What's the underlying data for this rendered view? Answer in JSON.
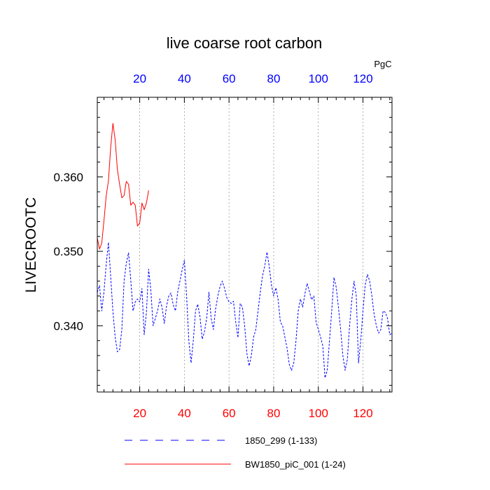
{
  "chart_data": {
    "type": "line",
    "title": "live coarse root carbon",
    "units": "PgC",
    "ylabel": "LIVECROOTC",
    "xlabel": "",
    "xlim": [
      1,
      133
    ],
    "ylim": [
      0.3311,
      0.3707
    ],
    "yticks_major": [
      0.34,
      0.35,
      0.36
    ],
    "ytick_labels": [
      "0.340",
      "0.350",
      "0.360"
    ],
    "yticks_minor_step": 0.002,
    "xticks": [
      20,
      40,
      60,
      80,
      100,
      120
    ],
    "xtick_labels": [
      "20",
      "40",
      "60",
      "80",
      "100",
      "120"
    ],
    "xtick_color_top": "#0000ff",
    "xtick_color_bottom": "#ff0000",
    "xgrid": true,
    "ygrid": false,
    "legend_placement": "bottom",
    "series": [
      {
        "name": "1850_299 (1-133)",
        "color": "#0000ff",
        "style": "dashed",
        "x": [
          1,
          2,
          3,
          4,
          5,
          6,
          7,
          8,
          9,
          10,
          11,
          12,
          13,
          14,
          15,
          16,
          17,
          18,
          19,
          20,
          21,
          22,
          23,
          24,
          25,
          26,
          27,
          28,
          29,
          30,
          31,
          32,
          33,
          34,
          35,
          36,
          37,
          38,
          39,
          40,
          41,
          42,
          43,
          44,
          45,
          46,
          47,
          48,
          49,
          50,
          51,
          52,
          53,
          54,
          55,
          56,
          57,
          58,
          59,
          60,
          61,
          62,
          63,
          64,
          65,
          66,
          67,
          68,
          69,
          70,
          71,
          72,
          73,
          74,
          75,
          76,
          77,
          78,
          79,
          80,
          81,
          82,
          83,
          84,
          85,
          86,
          87,
          88,
          89,
          90,
          91,
          92,
          93,
          94,
          95,
          96,
          97,
          98,
          99,
          100,
          101,
          102,
          103,
          104,
          105,
          106,
          107,
          108,
          109,
          110,
          111,
          112,
          113,
          114,
          115,
          116,
          117,
          118,
          119,
          120,
          121,
          122,
          123,
          124,
          125,
          126,
          127,
          128,
          129,
          130,
          131,
          132,
          133
        ],
        "y": [
          0.3445,
          0.3454,
          0.342,
          0.3446,
          0.3483,
          0.3512,
          0.3466,
          0.3419,
          0.3385,
          0.3365,
          0.3368,
          0.3395,
          0.346,
          0.3484,
          0.3498,
          0.3461,
          0.342,
          0.3432,
          0.3436,
          0.3432,
          0.345,
          0.3388,
          0.3418,
          0.3476,
          0.3447,
          0.34,
          0.341,
          0.342,
          0.3436,
          0.3425,
          0.3403,
          0.3426,
          0.344,
          0.3444,
          0.3428,
          0.342,
          0.3445,
          0.346,
          0.3475,
          0.3488,
          0.344,
          0.338,
          0.335,
          0.338,
          0.342,
          0.3429,
          0.3412,
          0.3382,
          0.3392,
          0.341,
          0.3445,
          0.341,
          0.3395,
          0.3423,
          0.344,
          0.3453,
          0.346,
          0.345,
          0.3438,
          0.3432,
          0.343,
          0.3433,
          0.3405,
          0.3384,
          0.343,
          0.3425,
          0.34,
          0.3363,
          0.3346,
          0.336,
          0.3385,
          0.3395,
          0.342,
          0.3445,
          0.3467,
          0.348,
          0.3499,
          0.348,
          0.3455,
          0.344,
          0.3451,
          0.3435,
          0.3405,
          0.34,
          0.3385,
          0.337,
          0.3348,
          0.334,
          0.335,
          0.338,
          0.342,
          0.3436,
          0.3425,
          0.3443,
          0.3457,
          0.3446,
          0.3435,
          0.344,
          0.3405,
          0.3395,
          0.3385,
          0.3373,
          0.333,
          0.334,
          0.338,
          0.342,
          0.3465,
          0.3452,
          0.3425,
          0.3395,
          0.336,
          0.334,
          0.3355,
          0.34,
          0.3435,
          0.346,
          0.344,
          0.335,
          0.338,
          0.342,
          0.3455,
          0.3469,
          0.346,
          0.344,
          0.3415,
          0.34,
          0.339,
          0.3395,
          0.342,
          0.3418,
          0.341,
          0.3388,
          0.339
        ]
      },
      {
        "name": "BW1850_piC_001 (1-24)",
        "color": "#ff0000",
        "style": "solid",
        "x": [
          1,
          2,
          3,
          4,
          5,
          6,
          7,
          8,
          9,
          10,
          11,
          12,
          13,
          14,
          15,
          16,
          17,
          18,
          19,
          20,
          21,
          22,
          23,
          24
        ],
        "y": [
          0.3518,
          0.3503,
          0.3511,
          0.3542,
          0.3575,
          0.3595,
          0.364,
          0.3672,
          0.365,
          0.361,
          0.359,
          0.3572,
          0.3575,
          0.3594,
          0.359,
          0.3562,
          0.3566,
          0.3562,
          0.3534,
          0.3538,
          0.3565,
          0.3556,
          0.3565,
          0.3582
        ]
      }
    ]
  }
}
